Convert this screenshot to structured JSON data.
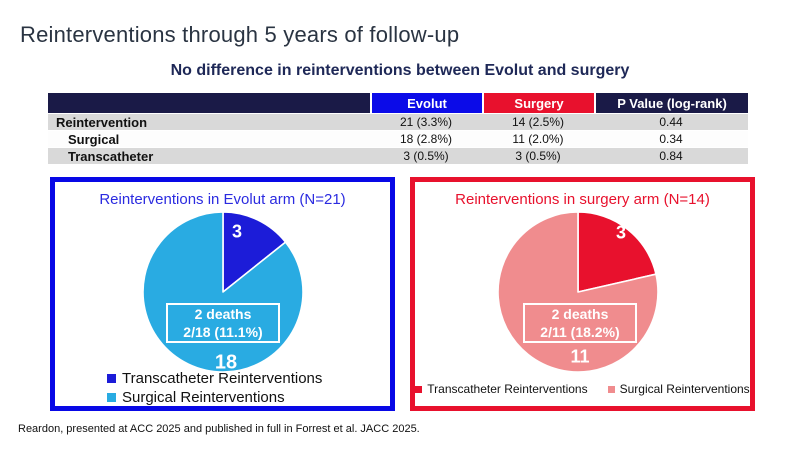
{
  "slide": {
    "title": "Reinterventions through 5 years of follow-up",
    "subtitle": "No difference in reinterventions between Evolut and surgery",
    "footnote": "Reardon, presented at ACC 2025 and published in full in Forrest et al. JACC 2025."
  },
  "table": {
    "header": {
      "col1": "",
      "col2": "Evolut",
      "col3": "Surgery",
      "col4": "P Value (log-rank)"
    },
    "header_colors": {
      "navy": "#1A1A47",
      "evolut_blue": "#0B0BE8",
      "surgery_red": "#E8112D"
    },
    "rows": [
      {
        "label": "Reintervention",
        "evolut": "21 (3.3%)",
        "surgery": "14 (2.5%)",
        "p_value": "0.44"
      },
      {
        "label": "Surgical",
        "evolut": "18 (2.8%)",
        "surgery": "11 (2.0%)",
        "p_value": "0.34"
      },
      {
        "label": "Transcatheter",
        "evolut": "3 (0.5%)",
        "surgery": "3 (0.5%)",
        "p_value": "0.84"
      }
    ]
  },
  "chart_data": [
    {
      "type": "pie",
      "title": "Reinterventions in Evolut arm (N=21)",
      "start_angle": "12 o'clock",
      "direction": "clockwise",
      "series": [
        {
          "name": "Transcatheter Reinterventions",
          "value": 3,
          "label": "3",
          "color": "#1C1CD8"
        },
        {
          "name": "Surgical Reinterventions",
          "value": 18,
          "label": "18",
          "color": "#29ABE2"
        }
      ],
      "center_note": {
        "line1": "2 deaths",
        "line2": "2/18 (11.1%)"
      },
      "border_color": "#0808E6",
      "title_color": "#2B2BE0",
      "legend_position": "bottom-left stacked"
    },
    {
      "type": "pie",
      "title": "Reinterventions in surgery arm (N=14)",
      "start_angle": "12 o'clock",
      "direction": "clockwise",
      "series": [
        {
          "name": "Transcatheter Reinterventions",
          "value": 3,
          "label": "3",
          "color": "#E8112D"
        },
        {
          "name": "Surgical Reinterventions",
          "value": 11,
          "label": "11",
          "color": "#F08C8E"
        }
      ],
      "center_note": {
        "line1": "2 deaths",
        "line2": "2/11 (18.2%)"
      },
      "border_color": "#E8112D",
      "title_color": "#E8112D",
      "legend_position": "bottom centered row"
    }
  ]
}
